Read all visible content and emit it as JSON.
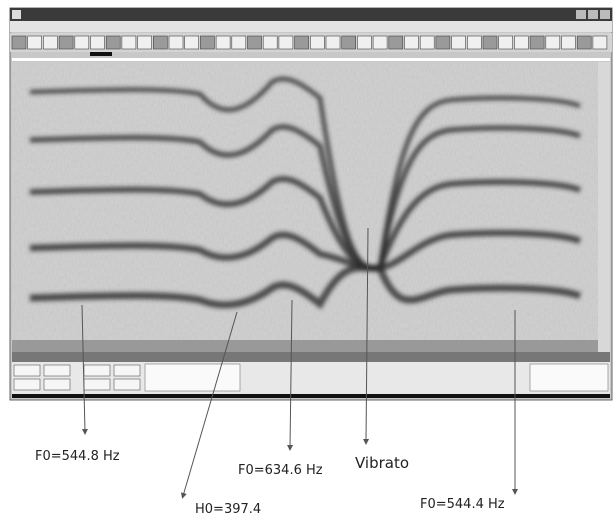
{
  "annotations": [
    {
      "label": "F0=544.8 Hz"
    },
    {
      "label": "H0=397.4"
    },
    {
      "label": "F0=634.6 Hz"
    },
    {
      "label": "Vibrato"
    },
    {
      "label": "F0=544.4 Hz"
    }
  ]
}
